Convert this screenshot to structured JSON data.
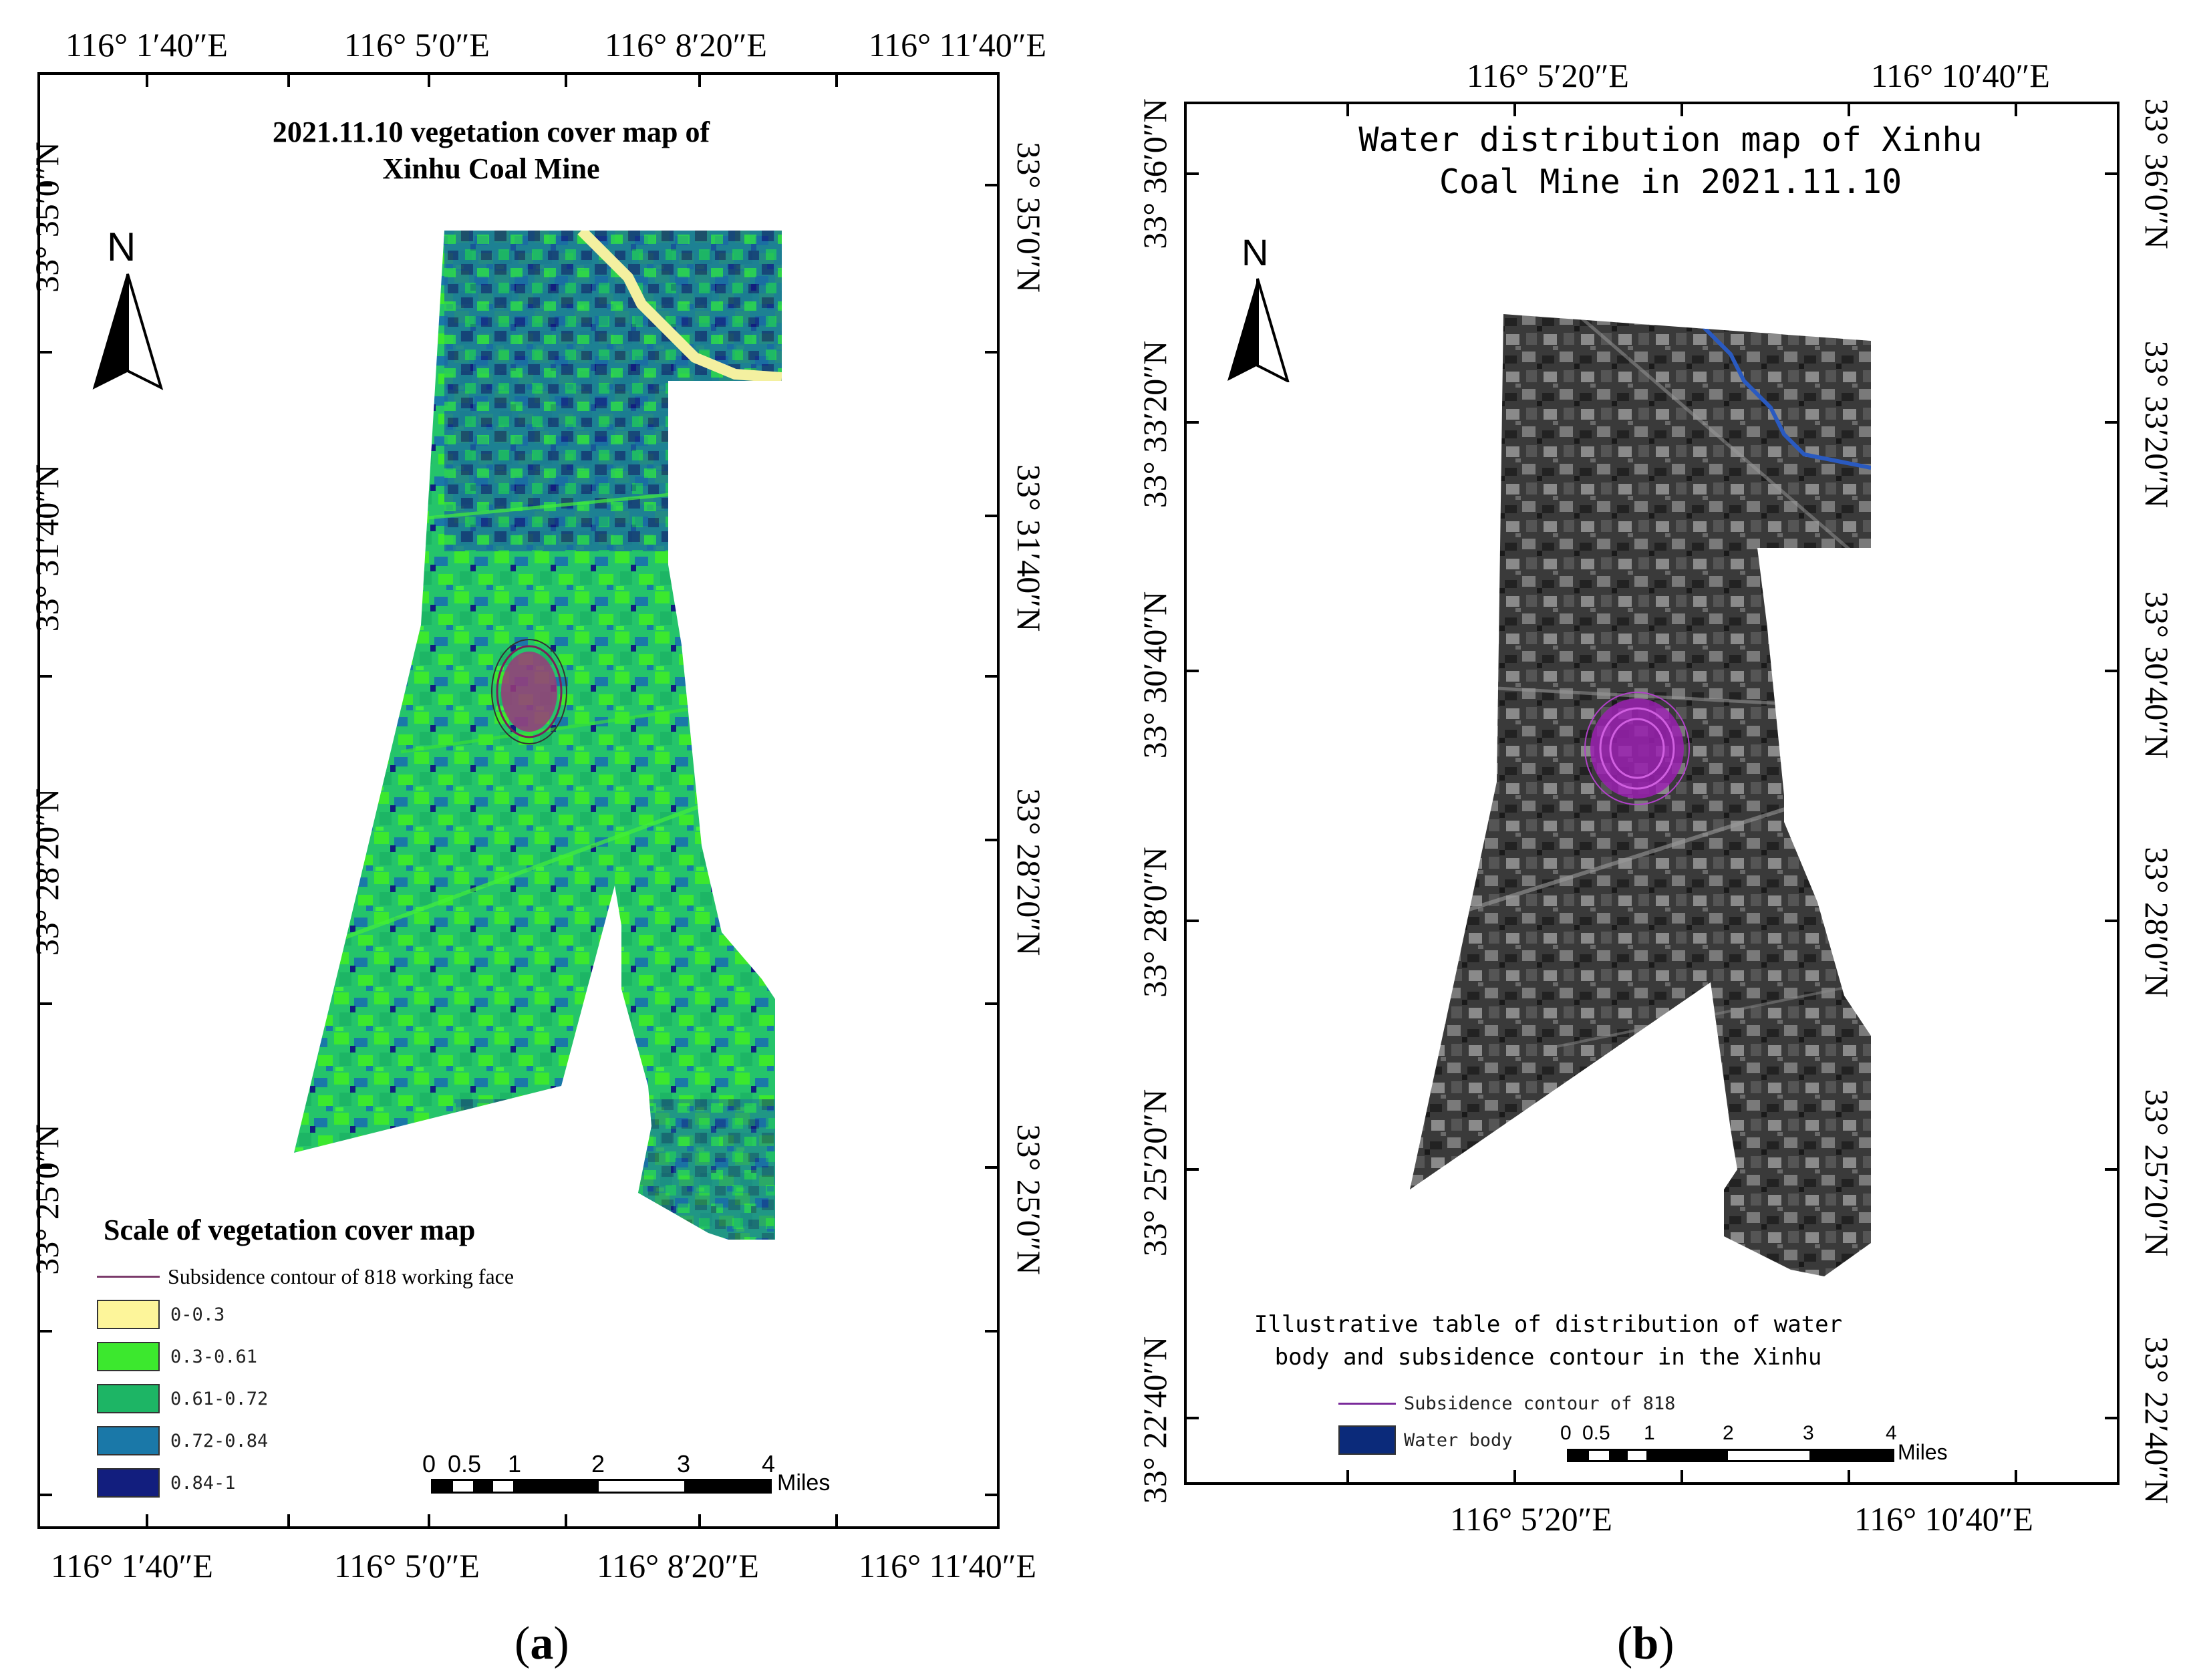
{
  "panel_a": {
    "label": "a",
    "title_line1": "2021.11.10 vegetation cover map of",
    "title_line2": "Xinhu Coal Mine",
    "top_lon_labels": [
      "116°  1′40″E",
      "116°  5′0″E",
      "116°  8′20″E",
      "116°  11′40″E"
    ],
    "bottom_lon_labels": [
      "116°  1′40″E",
      "116°  5′0″E",
      "116°  8′20″E",
      "116°  11′40″E"
    ],
    "left_lat_labels": [
      "33°  35′0″N",
      "33°  31′40″N",
      "33°  28′20″N",
      "33°  25′0″N"
    ],
    "right_lat_labels": [
      "33°  35′0″N",
      "33°  31′40″N",
      "33°  28′20″N",
      "33°  25′0″N"
    ],
    "north": "N",
    "legend_title": "Scale of vegetation cover map",
    "contour_label": "Subsidence contour of 818 working face",
    "classes": [
      {
        "label": "0-0.3",
        "color": "#fdf59a"
      },
      {
        "label": "0.3-0.61",
        "color": "#3ce82e"
      },
      {
        "label": "0.61-0.72",
        "color": "#1db565"
      },
      {
        "label": "0.72-0.84",
        "color": "#1a78a8"
      },
      {
        "label": "0.84-1",
        "color": "#121e7e"
      }
    ],
    "scale_numbers": [
      "0",
      "0.5",
      "1",
      "2",
      "3",
      "4"
    ],
    "scale_unit": "Miles"
  },
  "panel_b": {
    "label": "b",
    "title_line1": "Water distribution map of Xinhu",
    "title_line2": "Coal Mine in 2021.11.10",
    "top_lon_labels": [
      "116°  5′20″E",
      "116°  10′40″E"
    ],
    "bottom_lon_labels": [
      "116°  5′20″E",
      "116°  10′40″E"
    ],
    "left_lat_labels": [
      "33°  36′0″N",
      "33°  33′20″N",
      "33°  30′40″N",
      "33°  28′0″N",
      "33°  25′20″N",
      "33°  22′40″N"
    ],
    "right_lat_labels": [
      "33°  36′0″N",
      "33°  33′20″N",
      "33°  30′40″N",
      "33°  28′0″N",
      "33°  25′20″N",
      "33°  22′40″N"
    ],
    "north": "N",
    "legend_title_line1": "Illustrative table of distribution of water",
    "legend_title_line2": "body and subsidence contour in the Xinhu",
    "contour_label": "Subsidence contour of 818",
    "water_label": "Water body",
    "water_color": "#0b2a7a",
    "scale_numbers": [
      "0",
      "0.5",
      "1",
      "2",
      "3",
      "4"
    ],
    "scale_unit": "Miles"
  }
}
